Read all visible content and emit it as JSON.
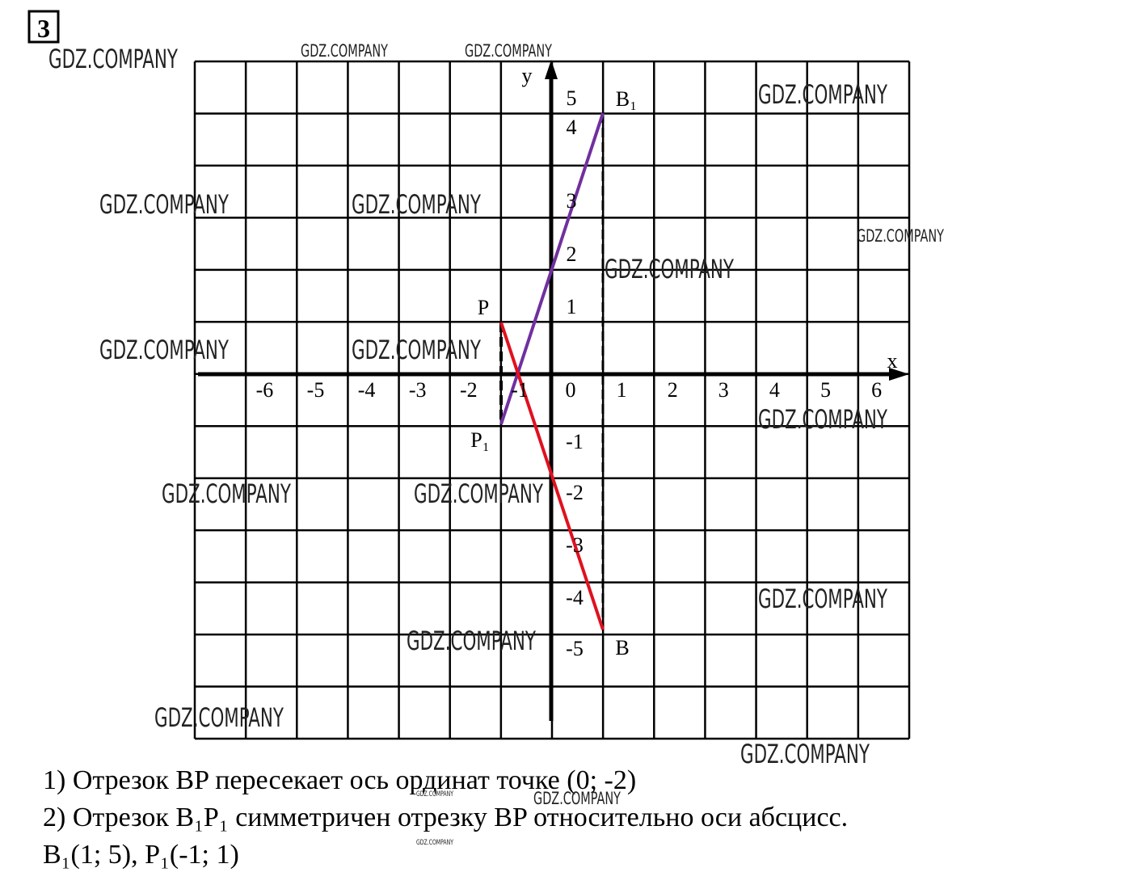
{
  "problem_number": "3",
  "axes": {
    "x_label": "x",
    "y_label": "y",
    "x_ticks": [
      "-6",
      "-5",
      "-4",
      "-3",
      "-2",
      "-1",
      "0",
      "1",
      "2",
      "3",
      "4",
      "5",
      "6"
    ],
    "y_ticks": [
      "5",
      "4",
      "3",
      "2",
      "1",
      "-1",
      "-2",
      "-3",
      "-4",
      "-5"
    ]
  },
  "points": [
    {
      "label": "B₁"
    },
    {
      "label": "P"
    },
    {
      "label": "P₁"
    },
    {
      "label": "B"
    }
  ],
  "text": {
    "lines": [
      "1) Отрезок BP пересекает ось ординат точке (0; -2)",
      "2) Отрезок B₁P₁ симметричен отрезку BP относительно оси абсцисс.",
      "B₁(1; 5), P₁(-1; 1)"
    ]
  },
  "watermarks": [
    "GDZ.COMPANY",
    "GDZ.COMPANY",
    "GDZ.COMPANY",
    "GDZ.COMPANY",
    "GDZ.COMPANY",
    "GDZ.COMPANY",
    "GDZ.COMPANY",
    "GDZ.COMPANY",
    "GDZ.COMPANY",
    "GDZ.COMPANY",
    "GDZ.COMPANY",
    "GDZ.COMPANY",
    "GDZ.COMPANY",
    "GDZ.COMPANY",
    "GDZ.COMPANY",
    "GDZ.COMPANY",
    "GDZ.COMPANY",
    "GDZ.COMPANY",
    "GDZ.COMPANY",
    "GDZ.COMPANY"
  ]
}
